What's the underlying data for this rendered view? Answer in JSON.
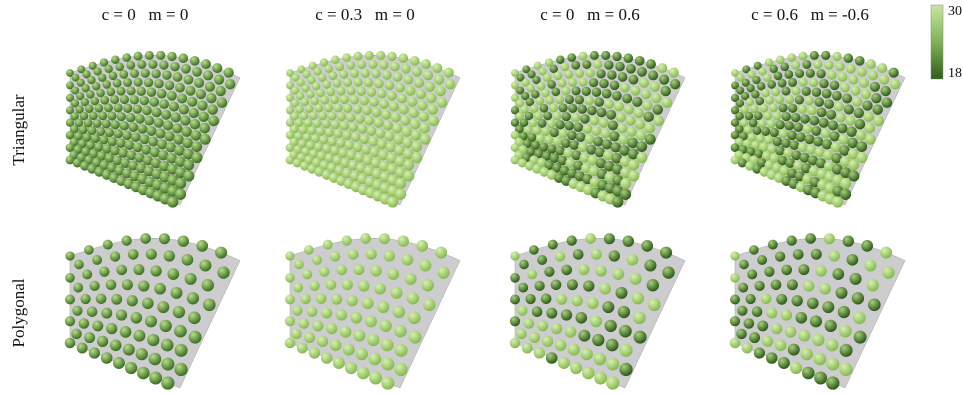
{
  "columns": [
    "c = 0   m = 0",
    "c = 0.3   m = 0",
    "c = 0   m = 0.6",
    "c = 0.6   m = -0.6"
  ],
  "rows": [
    "Triangular",
    "Polygonal"
  ],
  "colorbar": {
    "ticks": [
      30,
      18
    ]
  }
}
